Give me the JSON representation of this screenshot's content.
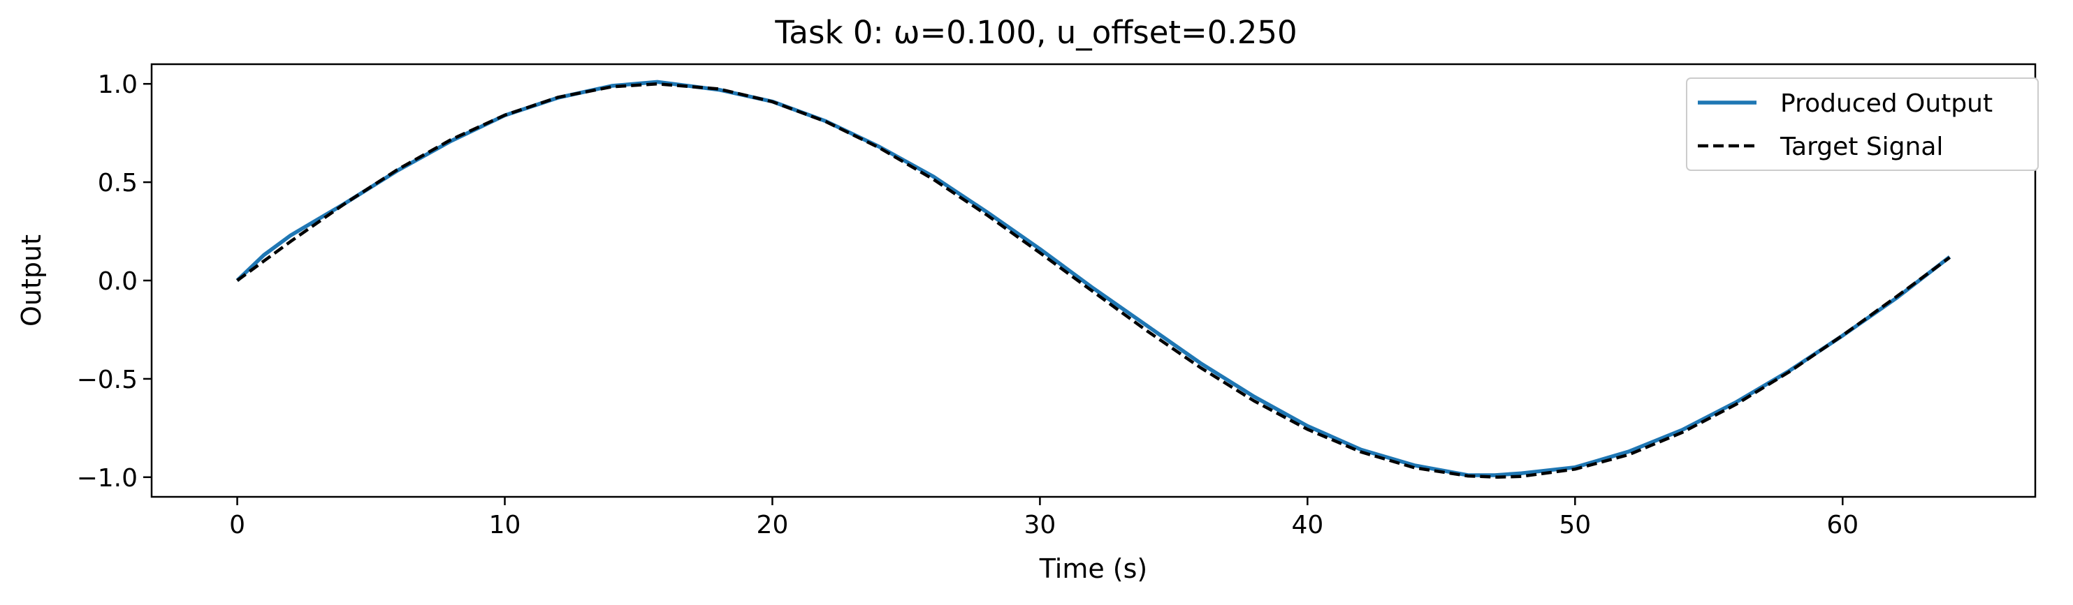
{
  "chart_data": {
    "type": "line",
    "title": "Task 0: ω=0.100, u_offset=0.250",
    "xlabel": "Time (s)",
    "ylabel": "Output",
    "xlim": [
      -3.2,
      67.2
    ],
    "ylim": [
      -1.1,
      1.1
    ],
    "xticks": [
      0,
      10,
      20,
      30,
      40,
      50,
      60
    ],
    "xtick_labels": [
      "0",
      "10",
      "20",
      "30",
      "40",
      "50",
      "60"
    ],
    "yticks": [
      -1.0,
      -0.5,
      0.0,
      0.5,
      1.0
    ],
    "ytick_labels": [
      "−1.0",
      "−0.5",
      "0.0",
      "0.5",
      "1.0"
    ],
    "grid": false,
    "legend_position": "top-right",
    "series": [
      {
        "name": "Produced Output",
        "color": "#1f77b4",
        "style": "solid",
        "x": [
          0,
          1,
          2,
          3,
          4,
          6,
          8,
          10,
          12,
          14,
          15.7,
          18,
          20,
          22,
          24,
          26,
          28,
          30,
          32,
          34,
          36,
          38,
          40,
          42,
          44,
          46,
          47,
          48,
          50,
          52,
          54,
          56,
          58,
          60,
          62,
          64
        ],
        "y": [
          0.0,
          0.13,
          0.23,
          0.31,
          0.39,
          0.56,
          0.71,
          0.84,
          0.93,
          0.99,
          1.01,
          0.97,
          0.91,
          0.81,
          0.68,
          0.53,
          0.35,
          0.16,
          -0.04,
          -0.23,
          -0.42,
          -0.59,
          -0.74,
          -0.86,
          -0.94,
          -0.99,
          -0.99,
          -0.98,
          -0.95,
          -0.87,
          -0.76,
          -0.62,
          -0.46,
          -0.28,
          -0.09,
          0.12
        ]
      },
      {
        "name": "Target Signal",
        "color": "#000000",
        "style": "dashed",
        "x": [
          0,
          2,
          4,
          6,
          8,
          10,
          12,
          14,
          15.7,
          18,
          20,
          22,
          24,
          26,
          28,
          30,
          32,
          34,
          36,
          38,
          40,
          42,
          44,
          46,
          47.1,
          48,
          50,
          52,
          54,
          56,
          58,
          60,
          62,
          64
        ],
        "y": [
          0.0,
          0.199,
          0.389,
          0.565,
          0.717,
          0.841,
          0.932,
          0.985,
          1.0,
          0.974,
          0.909,
          0.808,
          0.675,
          0.516,
          0.335,
          0.141,
          -0.058,
          -0.256,
          -0.443,
          -0.612,
          -0.757,
          -0.872,
          -0.952,
          -0.994,
          -1.0,
          -0.996,
          -0.959,
          -0.886,
          -0.773,
          -0.631,
          -0.465,
          -0.279,
          -0.083,
          0.117
        ]
      }
    ]
  }
}
